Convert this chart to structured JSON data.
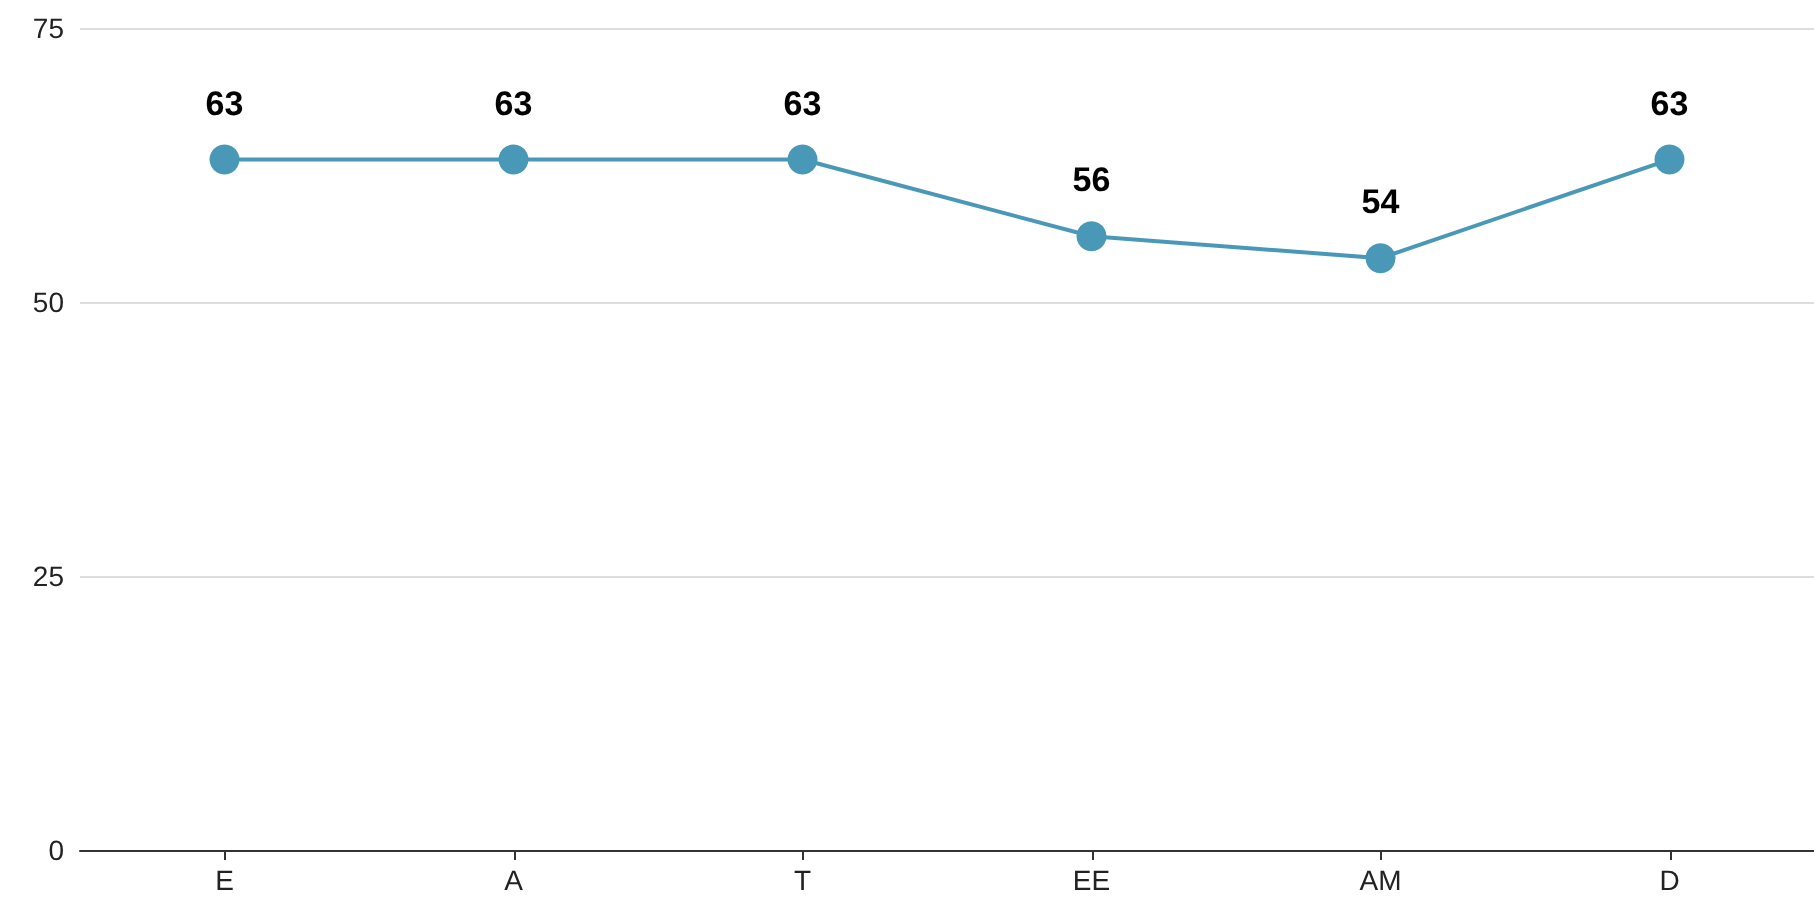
{
  "chart_data": {
    "type": "line",
    "categories": [
      "E",
      "A",
      "T",
      "EE",
      "AM",
      "D"
    ],
    "series": [
      {
        "color": "#4a98b8",
        "values": [
          63,
          63,
          63,
          56,
          54,
          63
        ]
      }
    ],
    "ylim": [
      0,
      75
    ],
    "yticks": [
      0,
      25,
      50,
      75
    ],
    "grid": "y",
    "marker": "circle",
    "line_style": "solid",
    "data_labels": true
  }
}
